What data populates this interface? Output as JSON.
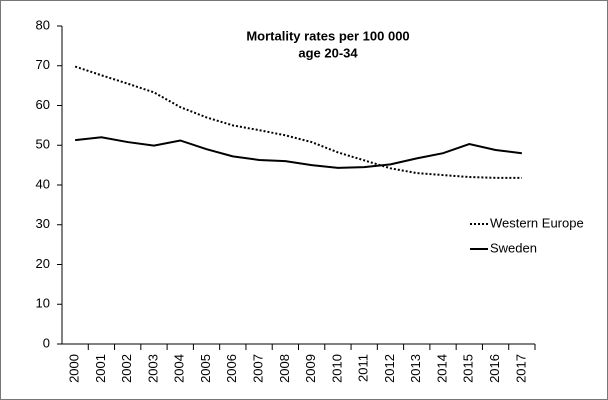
{
  "chart_data": {
    "type": "line",
    "title": "Mortality rates per 100 000",
    "subtitle": "age 20-34",
    "categories": [
      "2000",
      "2001",
      "2002",
      "2003",
      "2004",
      "2005",
      "2006",
      "2007",
      "2008",
      "2009",
      "2010",
      "2011",
      "2012",
      "2013",
      "2014",
      "2015",
      "2016",
      "2017"
    ],
    "series": [
      {
        "name": "Western Europe",
        "color": "#000000",
        "style": "dotted",
        "values": [
          69.8,
          67.6,
          65.5,
          63.3,
          59.6,
          57,
          55,
          53.8,
          52.5,
          50.8,
          48.2,
          46.2,
          44.2,
          43,
          42.5,
          42,
          41.8,
          41.8
        ]
      },
      {
        "name": "Sweden",
        "color": "#000000",
        "style": "solid",
        "values": [
          51.3,
          52,
          50.8,
          49.9,
          51.2,
          49,
          47.2,
          46.3,
          46,
          45,
          44.3,
          44.5,
          45.2,
          46.7,
          48,
          50.3,
          48.8,
          48
        ]
      }
    ],
    "ylim": [
      0,
      80
    ],
    "yticks": [
      0,
      10,
      20,
      30,
      40,
      50,
      60,
      70,
      80
    ],
    "grid": false,
    "legend": "right"
  }
}
